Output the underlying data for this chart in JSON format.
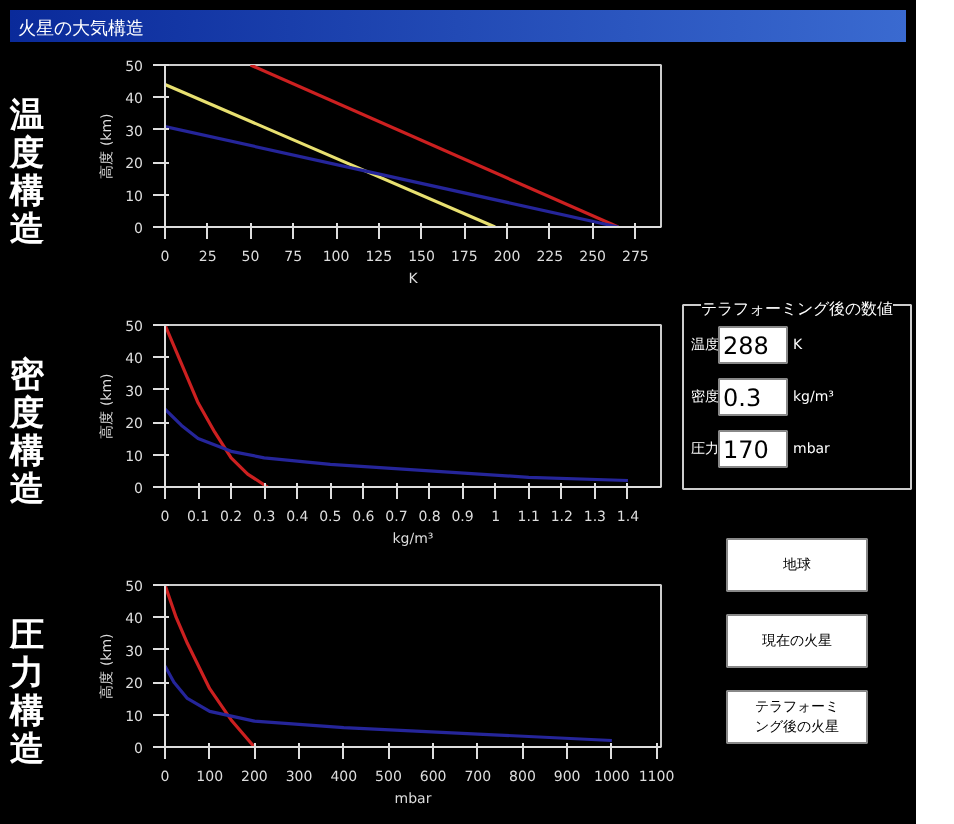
{
  "chart_data": [
    {
      "type": "line",
      "title": "温度構造",
      "ylabel": "高度 (km)",
      "xlabel": "K",
      "xlim": [
        0,
        290
      ],
      "xticks": [
        0,
        25,
        50,
        75,
        100,
        125,
        150,
        175,
        200,
        225,
        250,
        275
      ],
      "ylim": [
        0,
        50
      ],
      "yticks": [
        0,
        10,
        20,
        30,
        40,
        50
      ],
      "grid": false,
      "series": [
        {
          "color": "#cc2020",
          "x": [
            50,
            265
          ],
          "values": [
            50,
            0
          ]
        },
        {
          "color": "#e8e070",
          "x": [
            0,
            193
          ],
          "values": [
            44,
            0
          ]
        },
        {
          "color": "#25259a",
          "x": [
            0,
            265
          ],
          "values": [
            31,
            0
          ]
        }
      ]
    },
    {
      "type": "line",
      "title": "密度構造",
      "ylabel": "高度 (km)",
      "xlabel": "kg/m³",
      "xlim": [
        0,
        1.5
      ],
      "xticks": [
        0,
        0.1,
        0.2,
        0.3,
        0.4,
        0.5,
        0.6,
        0.7,
        0.8,
        0.9,
        1.0,
        1.1,
        1.2,
        1.3,
        1.4
      ],
      "ylim": [
        0,
        50
      ],
      "yticks": [
        0,
        10,
        20,
        30,
        40,
        50
      ],
      "grid": false,
      "series": [
        {
          "color": "#cc2020",
          "x": [
            0,
            0.05,
            0.1,
            0.15,
            0.2,
            0.25,
            0.31
          ],
          "values": [
            50,
            38,
            26,
            17,
            9,
            4,
            0
          ]
        },
        {
          "color": "#25259a",
          "x": [
            0,
            0.05,
            0.1,
            0.2,
            0.3,
            0.5,
            0.8,
            1.1,
            1.4
          ],
          "values": [
            24,
            19,
            15,
            11,
            9,
            7,
            5,
            3,
            2
          ]
        }
      ]
    },
    {
      "type": "line",
      "title": "圧力構造",
      "ylabel": "高度 (km)",
      "xlabel": "mbar",
      "xlim": [
        0,
        1110
      ],
      "xticks": [
        0,
        100,
        200,
        300,
        400,
        500,
        600,
        700,
        800,
        900,
        1000,
        1100
      ],
      "ylim": [
        0,
        50
      ],
      "yticks": [
        0,
        10,
        20,
        30,
        40,
        50
      ],
      "grid": false,
      "series": [
        {
          "color": "#cc2020",
          "x": [
            0,
            25,
            50,
            100,
            150,
            200
          ],
          "values": [
            50,
            40,
            32,
            18,
            8,
            0
          ]
        },
        {
          "color": "#25259a",
          "x": [
            0,
            20,
            50,
            100,
            200,
            400,
            700,
            1000
          ],
          "values": [
            25,
            20,
            15,
            11,
            8,
            6,
            4,
            2
          ]
        }
      ]
    },
    {
      "type": "other",
      "title": "テラフォーミング後の数値",
      "annotations": [
        "火星の大気構造",
        "温度",
        "288",
        "K",
        "密度",
        "0.3",
        "kg/m³",
        "圧力",
        "170",
        "mbar",
        "地球",
        "現在の火星",
        "テラフォーミング後の火星"
      ]
    }
  ]
}
